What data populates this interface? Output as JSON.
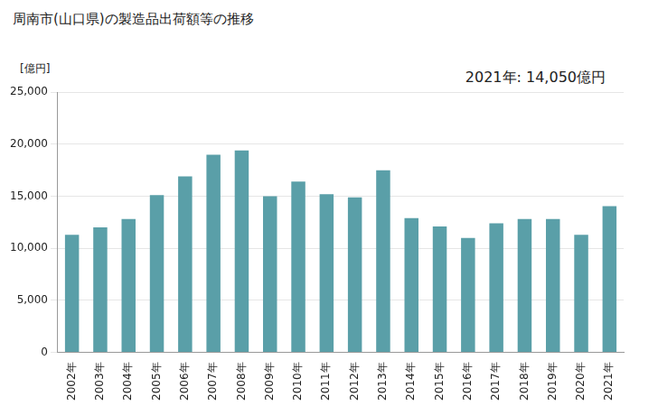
{
  "chart_data": {
    "type": "bar",
    "title": "周南市(山口県)の製造品出荷額等の推移",
    "ylabel": "[億円]",
    "annotation": "2021年: 14,050億円",
    "categories": [
      "2002年",
      "2003年",
      "2004年",
      "2005年",
      "2006年",
      "2007年",
      "2008年",
      "2009年",
      "2010年",
      "2011年",
      "2012年",
      "2013年",
      "2014年",
      "2015年",
      "2016年",
      "2017年",
      "2018年",
      "2019年",
      "2020年",
      "2021年"
    ],
    "values": [
      11300,
      12000,
      12800,
      15100,
      16900,
      19000,
      19400,
      15000,
      16400,
      15200,
      14900,
      17500,
      12900,
      12100,
      11000,
      12400,
      12800,
      12800,
      11300,
      14050
    ],
    "color": "#5a9fa8",
    "ylim": [
      0,
      25000
    ],
    "yticks": [
      0,
      {
        "value": 5000,
        "label": "5,000"
      },
      {
        "value": 10000,
        "label": "10,000"
      },
      {
        "value": 15000,
        "label": "15,000"
      },
      {
        "value": 20000,
        "label": "20,000"
      },
      {
        "value": 25000,
        "label": "25,000"
      }
    ],
    "grid": true
  }
}
